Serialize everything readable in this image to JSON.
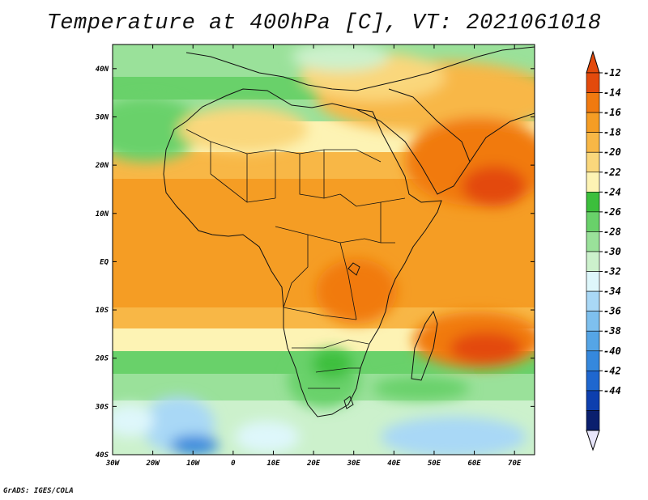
{
  "title": "Temperature at 400hPa [C], VT: 2021061018",
  "credit": "GrADS: IGES/COLA",
  "map": {
    "lon_range": [
      -30,
      75
    ],
    "lat_range": [
      -40,
      45
    ],
    "x_ticks": [
      {
        "lon": -30,
        "label": "30W"
      },
      {
        "lon": -20,
        "label": "20W"
      },
      {
        "lon": -10,
        "label": "10W"
      },
      {
        "lon": 0,
        "label": "0"
      },
      {
        "lon": 10,
        "label": "10E"
      },
      {
        "lon": 20,
        "label": "20E"
      },
      {
        "lon": 30,
        "label": "30E"
      },
      {
        "lon": 40,
        "label": "40E"
      },
      {
        "lon": 50,
        "label": "50E"
      },
      {
        "lon": 60,
        "label": "60E"
      },
      {
        "lon": 70,
        "label": "70E"
      }
    ],
    "y_ticks": [
      {
        "lat": 40,
        "label": "40N"
      },
      {
        "lat": 30,
        "label": "30N"
      },
      {
        "lat": 20,
        "label": "20N"
      },
      {
        "lat": 10,
        "label": "10N"
      },
      {
        "lat": 0,
        "label": "EQ"
      },
      {
        "lat": -10,
        "label": "10S"
      },
      {
        "lat": -20,
        "label": "20S"
      },
      {
        "lat": -30,
        "label": "30S"
      },
      {
        "lat": -40,
        "label": "40S"
      }
    ]
  },
  "colorbar": {
    "labels": [
      "-12",
      "-14",
      "-16",
      "-18",
      "-20",
      "-22",
      "-24",
      "-26",
      "-28",
      "-30",
      "-32",
      "-34",
      "-36",
      "-38",
      "-40",
      "-42",
      "-44"
    ],
    "colors": [
      "#e34a0c",
      "#f17a10",
      "#f59d24",
      "#f8b746",
      "#fad77c",
      "#fdf3b4",
      "#3cbf3c",
      "#69d16a",
      "#9ae19a",
      "#ccf1cc",
      "#def7fb",
      "#a9d8f6",
      "#7ec0ee",
      "#55a5e6",
      "#3588dd",
      "#1f67cf",
      "#0d3fae",
      "#0a1f6e"
    ],
    "top_cap_color": "#e34a0c",
    "bottom_cap_color": "#e8e6fa"
  }
}
